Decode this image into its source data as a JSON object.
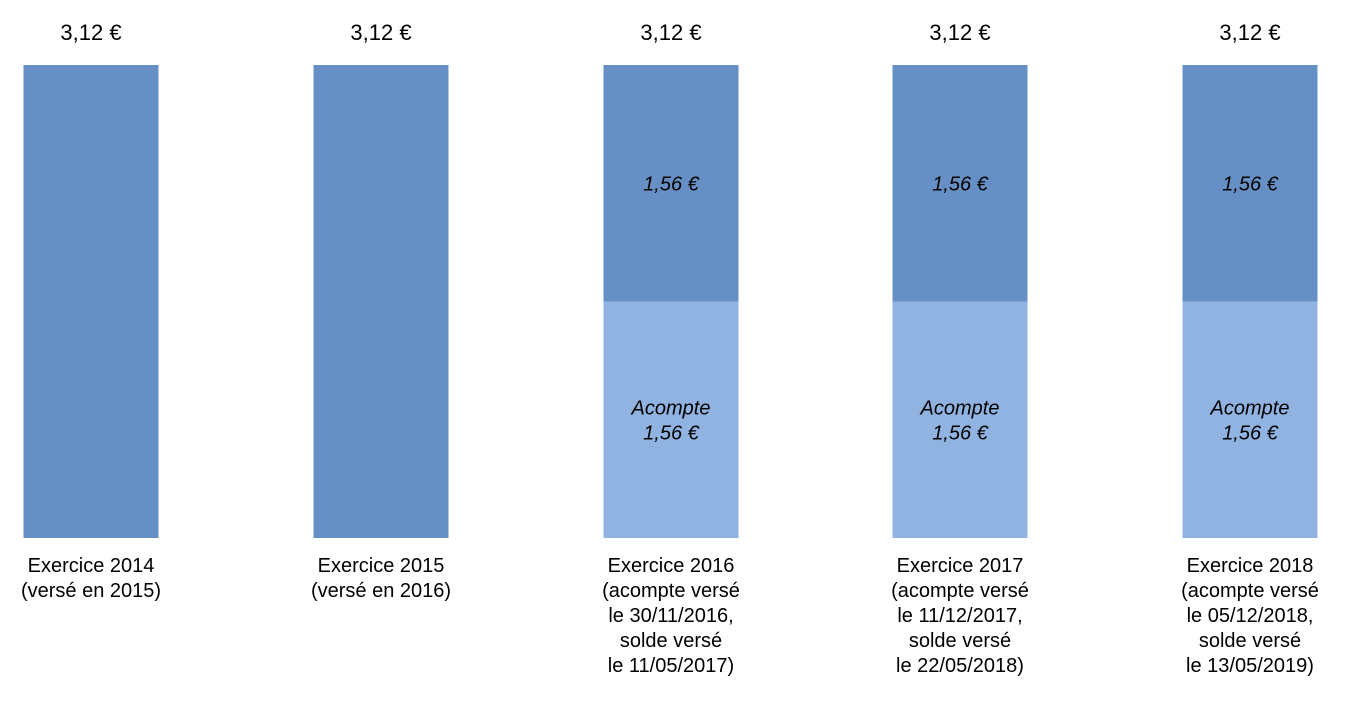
{
  "chart_data": {
    "type": "bar",
    "stacked": true,
    "ylim": [
      0,
      3.12
    ],
    "grid": false,
    "legend": "none",
    "colors": {
      "solde": "#6690c5",
      "acompte": "#90b3e2"
    },
    "categories": [
      {
        "label_lines": [
          "Exercice 2014",
          "(versé en 2015)"
        ],
        "total": 3.12,
        "total_label": "3,12 €",
        "segments": [
          {
            "key": "solde",
            "value": 3.12,
            "label_lines": []
          }
        ]
      },
      {
        "label_lines": [
          "Exercice 2015",
          "(versé en 2016)"
        ],
        "total": 3.12,
        "total_label": "3,12 €",
        "segments": [
          {
            "key": "solde",
            "value": 3.12,
            "label_lines": []
          }
        ]
      },
      {
        "label_lines": [
          "Exercice 2016",
          "(acompte versé",
          "le 30/11/2016,",
          "solde versé",
          "le 11/05/2017)"
        ],
        "total": 3.12,
        "total_label": "3,12 €",
        "segments": [
          {
            "key": "acompte",
            "value": 1.56,
            "label_lines": [
              "Acompte",
              "1,56 €"
            ]
          },
          {
            "key": "solde",
            "value": 1.56,
            "label_lines": [
              "1,56 €"
            ]
          }
        ]
      },
      {
        "label_lines": [
          "Exercice 2017",
          "(acompte versé",
          "le 11/12/2017,",
          "solde versé",
          "le 22/05/2018)"
        ],
        "total": 3.12,
        "total_label": "3,12 €",
        "segments": [
          {
            "key": "acompte",
            "value": 1.56,
            "label_lines": [
              "Acompte",
              "1,56 €"
            ]
          },
          {
            "key": "solde",
            "value": 1.56,
            "label_lines": [
              "1,56 €"
            ]
          }
        ]
      },
      {
        "label_lines": [
          "Exercice 2018",
          "(acompte versé",
          "le 05/12/2018,",
          "solde versé",
          "le 13/05/2019)"
        ],
        "total": 3.12,
        "total_label": "3,12 €",
        "segments": [
          {
            "key": "acompte",
            "value": 1.56,
            "label_lines": [
              "Acompte",
              "1,56 €"
            ]
          },
          {
            "key": "solde",
            "value": 1.56,
            "label_lines": [
              "1,56 €"
            ]
          }
        ]
      }
    ]
  }
}
